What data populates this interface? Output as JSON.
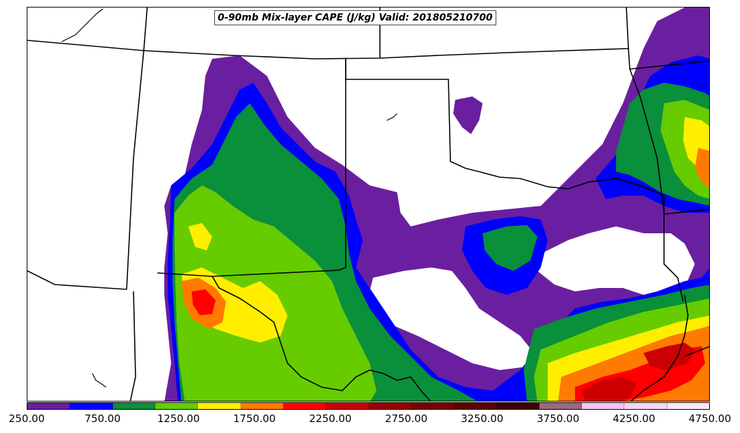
{
  "title": "0-90mb Mix-layer CAPE (J/kg) Valid: 201805210700",
  "colorbar": {
    "labels": [
      "250.00",
      "750.00",
      "1250.00",
      "1750.00",
      "2250.00",
      "2750.00",
      "3250.00",
      "3750.00",
      "4250.00",
      "4750.00"
    ],
    "colors": [
      "#6a1fa0",
      "#0000ff",
      "#0a8f3a",
      "#66cc00",
      "#ffee00",
      "#ff7a00",
      "#ff0000",
      "#cc0000",
      "#990000",
      "#7a0000",
      "#5c0000",
      "#3d0000",
      "#9a6a80",
      "#f5c6f0",
      "#f7d6f5",
      "#fbe8fa"
    ]
  },
  "legend_colors": {
    "cape_250": "#6a1fa0",
    "cape_500": "#0000ff",
    "cape_750": "#0a8f3a",
    "cape_1000": "#66cc00",
    "cape_1250": "#ffee00",
    "cape_1500": "#ff7a00",
    "cape_1750": "#ff0000",
    "cape_2000": "#cc0000",
    "border": "#000000"
  }
}
